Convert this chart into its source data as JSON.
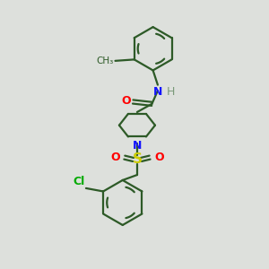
{
  "background_color": "#dde0dc",
  "bond_color": "#2d5a27",
  "atom_colors": {
    "N": "#1414ff",
    "O": "#ff0000",
    "S": "#cccc00",
    "Cl": "#00aa00",
    "C": "#2d5a27"
  },
  "lw": 1.6,
  "figsize": [
    3.0,
    3.0
  ],
  "dpi": 100
}
